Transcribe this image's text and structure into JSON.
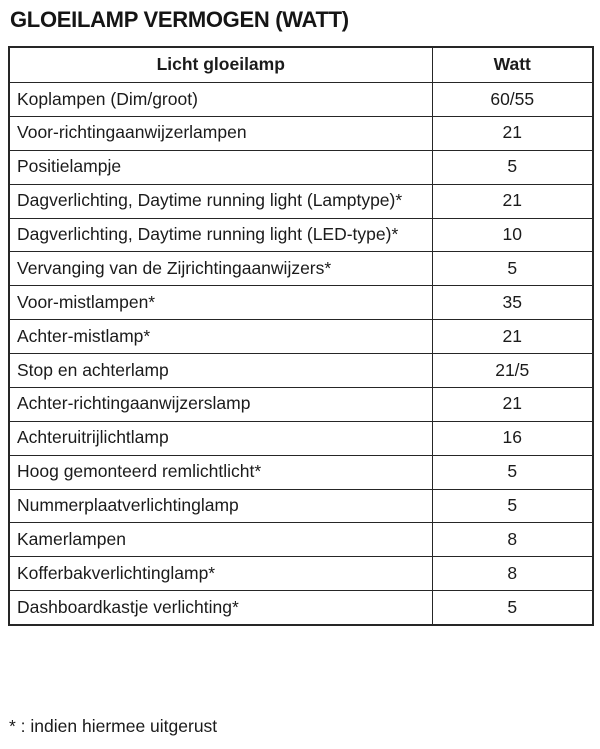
{
  "title": "GLOEILAMP VERMOGEN (WATT)",
  "table": {
    "col1_header": "Licht gloeilamp",
    "col2_header": "Watt",
    "rows": [
      {
        "label": "Koplampen (Dim/groot)",
        "watt": "60/55"
      },
      {
        "label": "Voor-richtingaanwijzerlampen",
        "watt": "21"
      },
      {
        "label": "Positielampje",
        "watt": "5"
      },
      {
        "label": "Dagverlichting, Daytime running light (Lamptype)*",
        "watt": "21"
      },
      {
        "label": "Dagverlichting, Daytime running light (LED-type)*",
        "watt": "10"
      },
      {
        "label": "Vervanging van de Zijrichtingaanwijzers*",
        "watt": "5"
      },
      {
        "label": "Voor-mistlampen*",
        "watt": "35"
      },
      {
        "label": "Achter-mistlamp*",
        "watt": "21"
      },
      {
        "label": "Stop en achterlamp",
        "watt": "21/5"
      },
      {
        "label": "Achter-richtingaanwijzerslamp",
        "watt": "21"
      },
      {
        "label": "Achteruitrijlichtlamp",
        "watt": "16"
      },
      {
        "label": "Hoog gemonteerd remlichtlicht*",
        "watt": "5"
      },
      {
        "label": "Nummerplaatverlichtinglamp",
        "watt": "5"
      },
      {
        "label": "Kamerlampen",
        "watt": "8"
      },
      {
        "label": "Kofferbakverlichtinglamp*",
        "watt": "8"
      },
      {
        "label": "Dashboardkastje verlichting*",
        "watt": "5"
      }
    ]
  },
  "footnote": "* : indien hiermee uitgerust",
  "colors": {
    "text": "#1b1b1b",
    "border": "#262626",
    "background": "#ffffff"
  }
}
